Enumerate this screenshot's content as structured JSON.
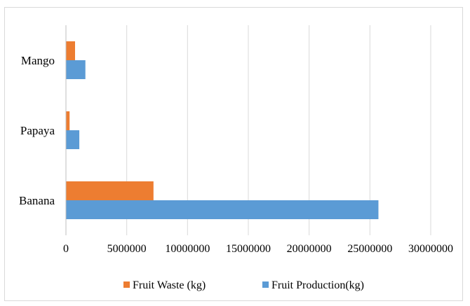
{
  "chart_data": {
    "type": "bar",
    "orientation": "horizontal",
    "categories": [
      "Banana",
      "Papaya",
      "Mango"
    ],
    "series": [
      {
        "name": "Fruit Waste (kg)",
        "color": "#ED7D31",
        "values": [
          7200000,
          300000,
          750000
        ]
      },
      {
        "name": "Fruit Production(kg)",
        "color": "#5B9BD5",
        "values": [
          25700000,
          1100000,
          1600000
        ]
      }
    ],
    "xlim": [
      0,
      30000000
    ],
    "xticks": [
      0,
      5000000,
      10000000,
      15000000,
      20000000,
      25000000,
      30000000
    ],
    "xtick_labels": [
      "0",
      "5000000",
      "10000000",
      "15000000",
      "20000000",
      "25000000",
      "30000000"
    ],
    "grid": true,
    "legend_position": "bottom",
    "title": "",
    "xlabel": "",
    "ylabel": ""
  }
}
